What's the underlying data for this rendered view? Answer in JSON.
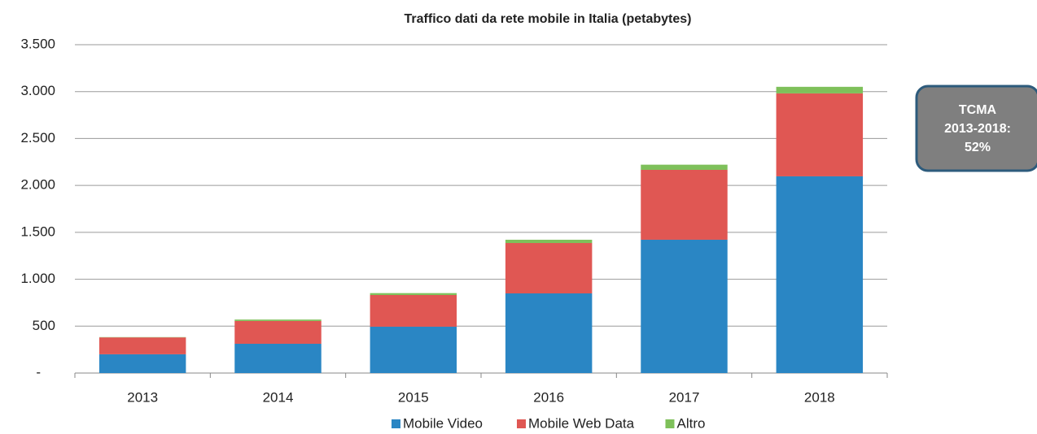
{
  "chart_data": {
    "type": "stacked_bar",
    "title": "Traffico dati da rete mobile in Italia  (petabytes)",
    "categories": [
      "2013",
      "2014",
      "2015",
      "2016",
      "2017",
      "2018"
    ],
    "series": [
      {
        "name": "Mobile Video",
        "color": "#2a86c4",
        "values": [
          200,
          312,
          494,
          849,
          1421,
          2097
        ]
      },
      {
        "name": "Mobile Web Data",
        "color": "#e05753",
        "values": [
          180,
          243,
          338,
          537,
          745,
          884
        ]
      },
      {
        "name": "Altro",
        "color": "#7ec05a",
        "values": [
          3,
          15,
          20,
          35,
          55,
          70
        ]
      }
    ],
    "ylim": [
      0,
      3500
    ],
    "yticks": [
      {
        "value": 0,
        "label": "-"
      },
      500,
      {
        "value": 1000,
        "label": "1.000"
      },
      {
        "value": 1500,
        "label": "1.500"
      },
      {
        "value": 2000,
        "label": "2.000"
      },
      {
        "value": 2500,
        "label": "2.500"
      },
      {
        "value": 3000,
        "label": "3.000"
      },
      {
        "value": 3500,
        "label": "3.500"
      }
    ],
    "grid": true,
    "legend": "bottom",
    "annotation": [
      "TCMA",
      "2013-2018:",
      "52%"
    ]
  }
}
